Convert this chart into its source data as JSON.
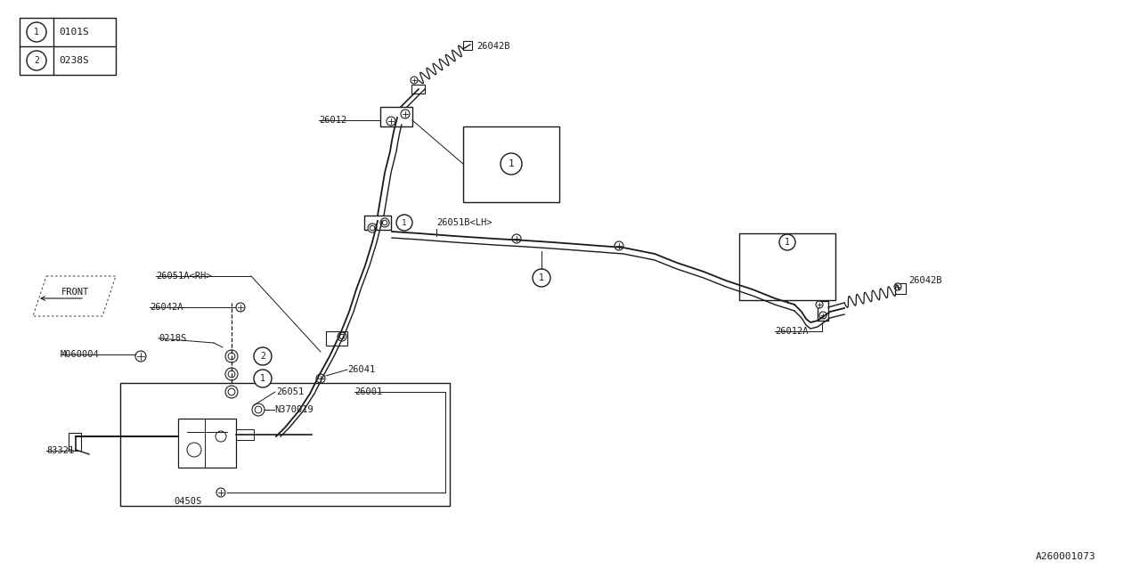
{
  "bg_color": "#ffffff",
  "line_color": "#1a1a1a",
  "figsize": [
    12.8,
    6.4
  ],
  "dpi": 100,
  "legend_items": [
    {
      "num": "1",
      "code": "0101S"
    },
    {
      "num": "2",
      "code": "0238S"
    }
  ]
}
